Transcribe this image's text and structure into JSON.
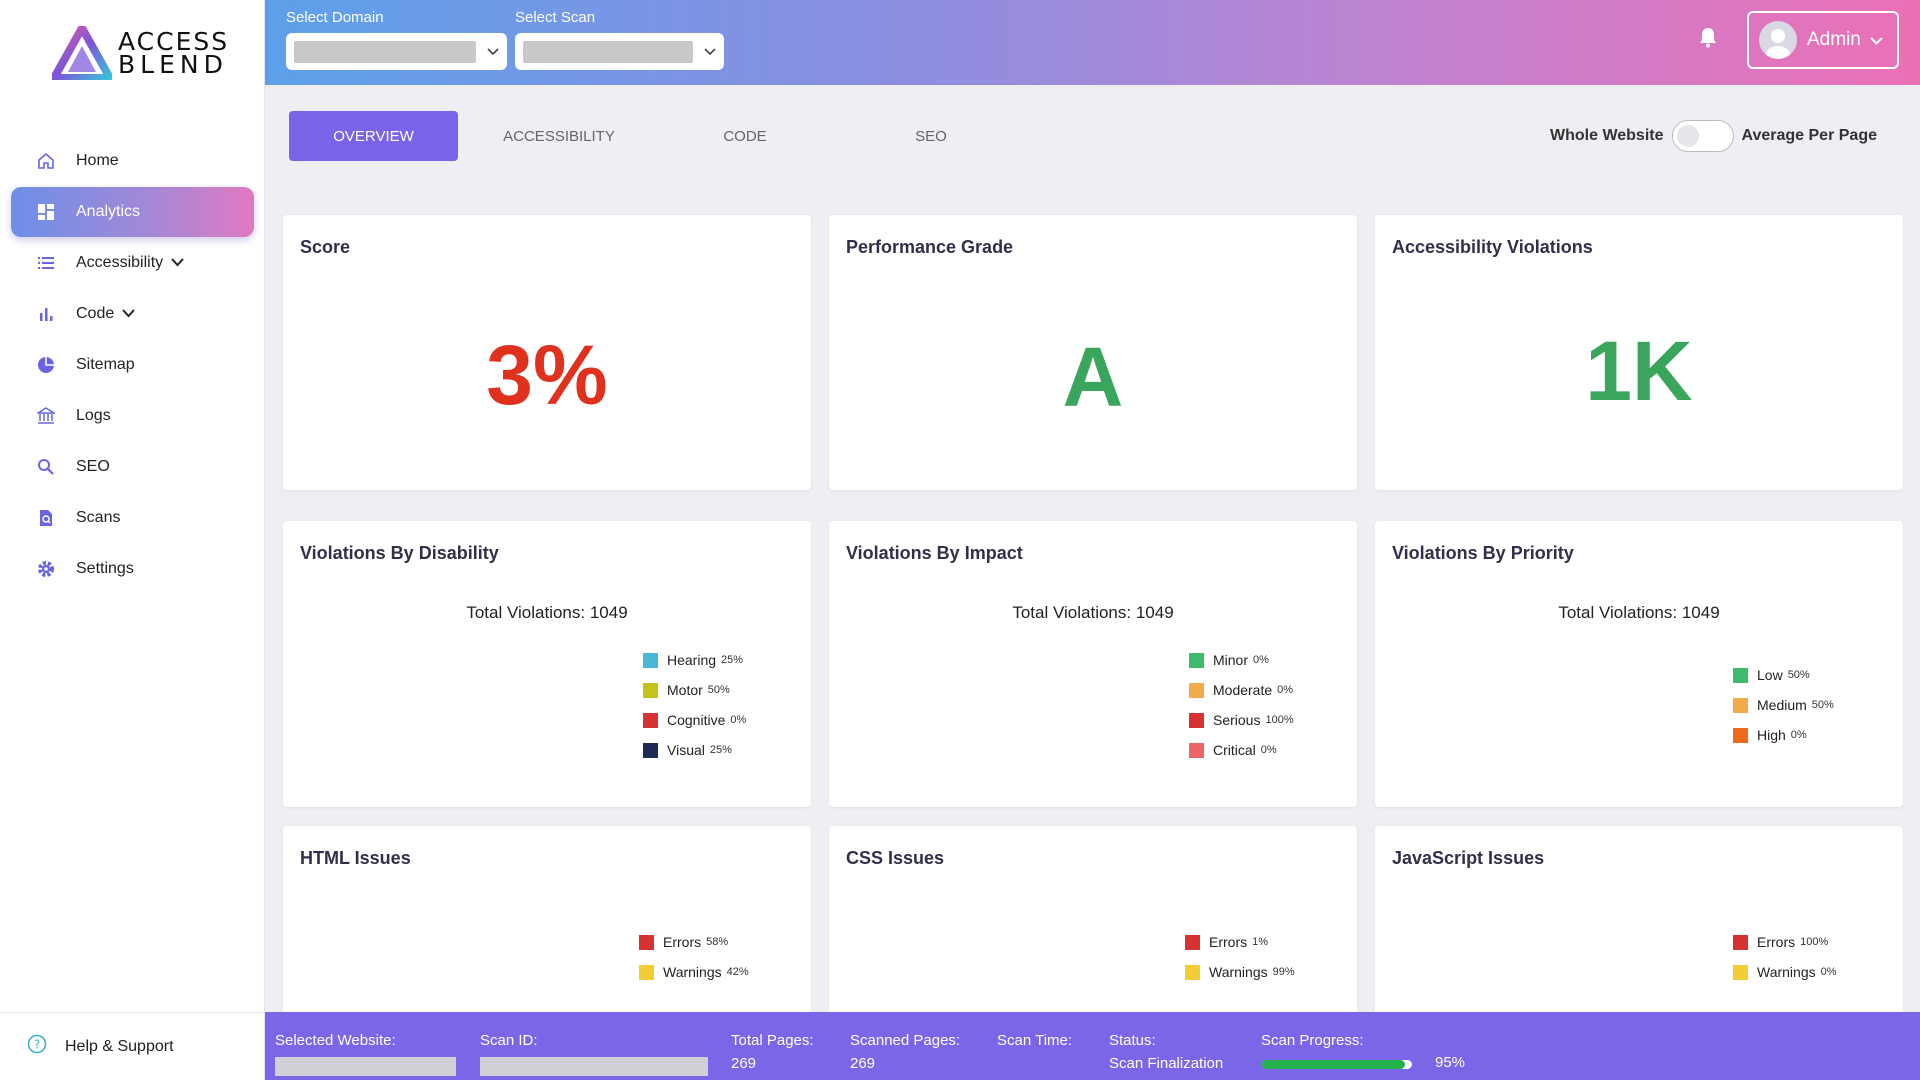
{
  "brand": {
    "line1": "ACCESS",
    "line2": "BLEND"
  },
  "sidebar": {
    "items": [
      {
        "label": "Home",
        "icon": "home-icon"
      },
      {
        "label": "Analytics",
        "icon": "dashboard-icon",
        "active": true
      },
      {
        "label": "Accessibility",
        "icon": "list-icon",
        "expandable": true
      },
      {
        "label": "Code",
        "icon": "bar-chart-icon",
        "expandable": true
      },
      {
        "label": "Sitemap",
        "icon": "pie-chart-icon"
      },
      {
        "label": "Logs",
        "icon": "bank-icon"
      },
      {
        "label": "SEO",
        "icon": "search-icon"
      },
      {
        "label": "Scans",
        "icon": "scan-icon"
      },
      {
        "label": "Settings",
        "icon": "gear-icon"
      }
    ],
    "help": "Help & Support"
  },
  "header": {
    "domain_label": "Select Domain",
    "scan_label": "Select Scan",
    "user": "Admin"
  },
  "tabs": [
    "OVERVIEW",
    "ACCESSIBILITY",
    "CODE",
    "SEO"
  ],
  "toggle": {
    "left": "Whole Website",
    "right": "Average Per Page"
  },
  "cards": {
    "score": {
      "title": "Score",
      "value": "3%"
    },
    "grade": {
      "title": "Performance Grade",
      "value": "A"
    },
    "violations": {
      "title": "Accessibility Violations",
      "value": "1K"
    },
    "disability": {
      "title": "Violations By Disability",
      "total": "Total Violations: 1049",
      "legend": [
        {
          "label": "Hearing",
          "pct": "25%",
          "color": "#49b6d6"
        },
        {
          "label": "Motor",
          "pct": "50%",
          "color": "#c3c31a"
        },
        {
          "label": "Cognitive",
          "pct": "0%",
          "color": "#d63232"
        },
        {
          "label": "Visual",
          "pct": "25%",
          "color": "#1c2a55"
        }
      ]
    },
    "impact": {
      "title": "Violations By Impact",
      "total": "Total Violations: 1049",
      "legend": [
        {
          "label": "Minor",
          "pct": "0%",
          "color": "#3dbb6b"
        },
        {
          "label": "Moderate",
          "pct": "0%",
          "color": "#f0ac4a"
        },
        {
          "label": "Serious",
          "pct": "100%",
          "color": "#d63232"
        },
        {
          "label": "Critical",
          "pct": "0%",
          "color": "#ee6464"
        }
      ]
    },
    "priority": {
      "title": "Violations By Priority",
      "total": "Total Violations: 1049",
      "legend": [
        {
          "label": "Low",
          "pct": "50%",
          "color": "#3dbb6b"
        },
        {
          "label": "Medium",
          "pct": "50%",
          "color": "#f0ac4a"
        },
        {
          "label": "High",
          "pct": "0%",
          "color": "#ec6a1a"
        }
      ]
    },
    "html": {
      "title": "HTML Issues",
      "legend": [
        {
          "label": "Errors",
          "pct": "58%",
          "color": "#d63232"
        },
        {
          "label": "Warnings",
          "pct": "42%",
          "color": "#f2cd34"
        }
      ]
    },
    "css": {
      "title": "CSS Issues",
      "legend": [
        {
          "label": "Errors",
          "pct": "1%",
          "color": "#d63232"
        },
        {
          "label": "Warnings",
          "pct": "99%",
          "color": "#f2cd34"
        }
      ]
    },
    "js": {
      "title": "JavaScript Issues",
      "legend": [
        {
          "label": "Errors",
          "pct": "100%",
          "color": "#d63232"
        },
        {
          "label": "Warnings",
          "pct": "0%",
          "color": "#f2cd34"
        }
      ]
    }
  },
  "status": {
    "website_label": "Selected Website:",
    "scan_id_label": "Scan ID:",
    "total_pages_label": "Total Pages:",
    "total_pages": "269",
    "scanned_pages_label": "Scanned Pages:",
    "scanned_pages": "269",
    "scan_time_label": "Scan Time:",
    "status_label": "Status:",
    "status_value": "Scan Finalization",
    "progress_label": "Scan Progress:",
    "progress_text": "95%",
    "progress": 0.95
  },
  "colors": {
    "score": "#e0301e",
    "grade": "#3aa55c",
    "violations": "#3aa55c",
    "accent": "#7a63e6"
  }
}
